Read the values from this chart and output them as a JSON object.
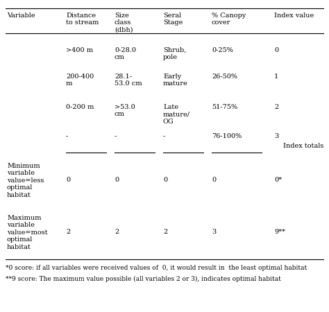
{
  "figsize": [
    4.74,
    4.5
  ],
  "dpi": 100,
  "bg_color": "#ffffff",
  "header_row": [
    "Variable",
    "Distance\nto stream",
    "Size\nclass\n(dbh)",
    "Seral\nStage",
    "% Canopy\ncover",
    "Index value"
  ],
  "col_x_inches": [
    0.1,
    0.95,
    1.65,
    2.35,
    3.05,
    3.95
  ],
  "col_aligns": [
    "left",
    "left",
    "left",
    "left",
    "left",
    "left"
  ],
  "data_rows": [
    [
      "",
      ">400 m",
      "0-28.0\ncm",
      "Shrub,\npole",
      "0-25%",
      "0"
    ],
    [
      "",
      "200-400\nm",
      "28.1-\n53.0 cm",
      "Early\nmature",
      "26-50%",
      "1"
    ],
    [
      "",
      "0-200 m",
      ">53.0\ncm",
      "Late\nmature/\nOG",
      "51-75%",
      "2"
    ],
    [
      "",
      "-",
      "-",
      "-",
      "76-100%",
      "3"
    ]
  ],
  "index_totals_label": "Index totals",
  "min_row_label": "Minimum\nvariable\nvalue=less\noptimal\nhabitat",
  "min_row_values": [
    "0",
    "0",
    "0",
    "0",
    "0*"
  ],
  "max_row_label": "Maximum\nvariable\nvalue=most\noptimal\nhabitat",
  "max_row_values": [
    "2",
    "2",
    "2",
    "3",
    "9**"
  ],
  "footnote1": "*0 score: if all variables were received values of  0, it would result in  the least optimal habitat",
  "footnote2": "**9 score: The maximum value possible (all variables 2 or 3), indicates optimal habitat",
  "font_size": 7.0,
  "footnote_font_size": 6.5,
  "line_color": "#000000",
  "line_lw": 0.8
}
